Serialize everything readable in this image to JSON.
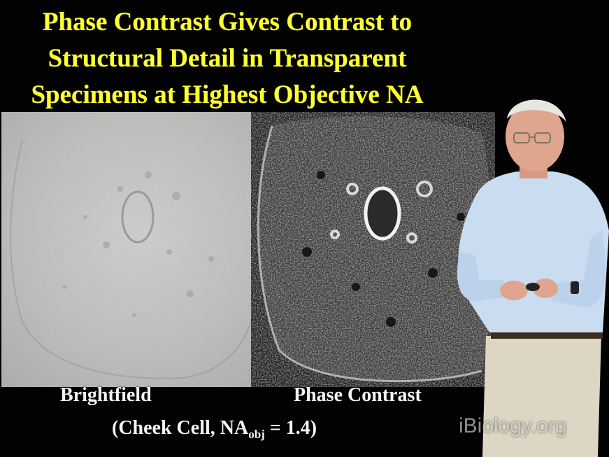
{
  "slide": {
    "title_lines": [
      "Phase Contrast Gives Contrast to",
      "Structural Detail in Transparent",
      "Specimens at Highest Objective NA"
    ],
    "title_color": "#ffff33"
  },
  "panels": {
    "brightfield_label": "Brightfield",
    "phase_label": "Phase Contrast"
  },
  "caption": {
    "prefix": "(Cheek Cell, NA",
    "subscript": "obj",
    "suffix": " = 1.4)"
  },
  "watermark": "iBiology.org"
}
